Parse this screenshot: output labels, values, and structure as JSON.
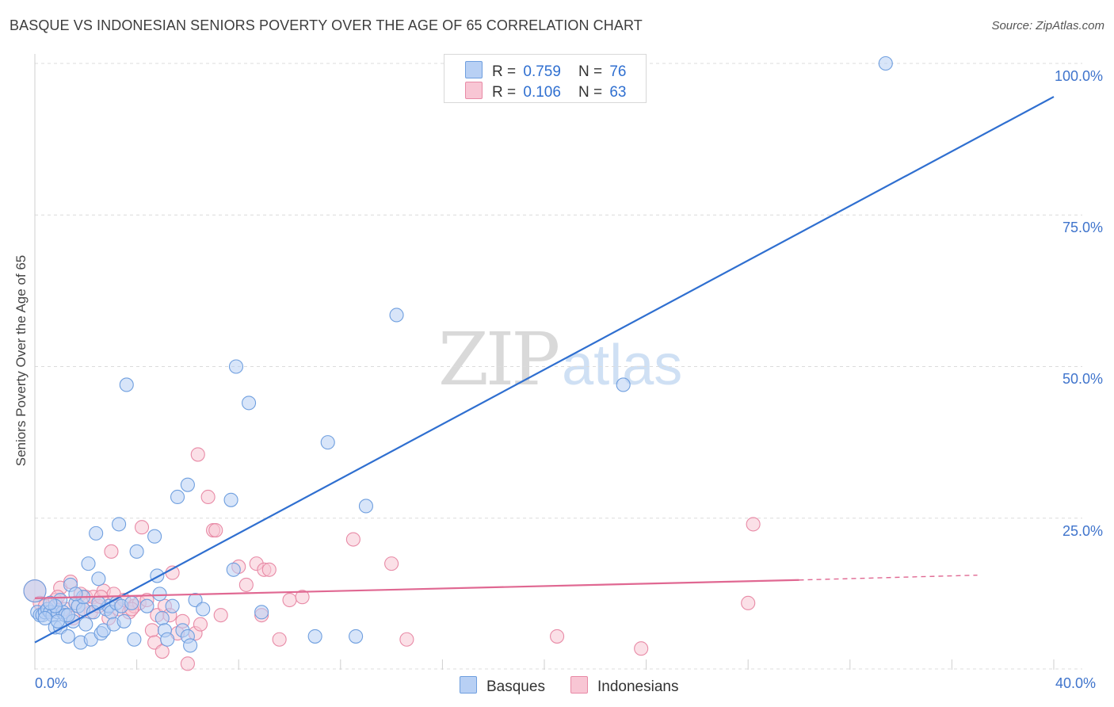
{
  "header": {
    "title": "BASQUE VS INDONESIAN SENIORS POVERTY OVER THE AGE OF 65 CORRELATION CHART",
    "source": "Source: ZipAtlas.com"
  },
  "watermark": {
    "zip": "ZIP",
    "atlas": "atlas"
  },
  "legend": {
    "basques": {
      "r_label": "R =",
      "r_value": "0.759",
      "n_label": "N =",
      "n_value": "76"
    },
    "indonesians": {
      "r_label": "R =",
      "r_value": "0.106",
      "n_label": "N =",
      "n_value": "63"
    }
  },
  "colors": {
    "basques_fill": "#b8d0f4",
    "basques_stroke": "#6f9fdf",
    "basques_line": "#2f6fd0",
    "indonesians_fill": "#f8c6d4",
    "indonesians_stroke": "#e88aa6",
    "indonesians_line": "#e06892"
  },
  "chart_data": {
    "type": "scatter",
    "title": "BASQUE VS INDONESIAN SENIORS POVERTY OVER THE AGE OF 65 CORRELATION CHART",
    "xlabel": "",
    "ylabel": "Seniors Poverty Over the Age of 65",
    "xlim": [
      0,
      40
    ],
    "ylim": [
      0,
      100
    ],
    "x_tick_labels": [
      "0.0%",
      "40.0%"
    ],
    "y_tick_labels": [
      "25.0%",
      "50.0%",
      "75.0%",
      "100.0%"
    ],
    "y_ticks": [
      25,
      50,
      75,
      100
    ],
    "x_gridlines": [
      0,
      4,
      8,
      12,
      16,
      20,
      24,
      28,
      32,
      36,
      40
    ],
    "y_gridlines": [
      25,
      50,
      75,
      100
    ],
    "legend_position": "top-center",
    "series": [
      {
        "name": "Basques",
        "r": 0.759,
        "n": 76,
        "trend": {
          "x": [
            0,
            40
          ],
          "y": [
            4.5,
            94.5
          ],
          "dashed_from": null
        },
        "points": [
          [
            0.0,
            13.0
          ],
          [
            0.1,
            9.5
          ],
          [
            0.2,
            9.0
          ],
          [
            0.3,
            9.0
          ],
          [
            0.4,
            9.5
          ],
          [
            0.5,
            10.0
          ],
          [
            0.6,
            9.5
          ],
          [
            0.7,
            9.0
          ],
          [
            0.8,
            7.0
          ],
          [
            0.9,
            9.5
          ],
          [
            1.0,
            7.0
          ],
          [
            1.1,
            9.5
          ],
          [
            1.2,
            9.0
          ],
          [
            1.3,
            5.5
          ],
          [
            1.4,
            14.0
          ],
          [
            1.5,
            8.0
          ],
          [
            1.6,
            11.0
          ],
          [
            1.7,
            10.5
          ],
          [
            1.8,
            4.5
          ],
          [
            1.9,
            10.0
          ],
          [
            2.1,
            17.5
          ],
          [
            2.2,
            5.0
          ],
          [
            2.3,
            9.5
          ],
          [
            2.4,
            22.5
          ],
          [
            2.5,
            15.0
          ],
          [
            2.6,
            6.0
          ],
          [
            2.7,
            6.5
          ],
          [
            2.8,
            10.0
          ],
          [
            2.9,
            10.5
          ],
          [
            3.0,
            9.5
          ],
          [
            3.1,
            7.5
          ],
          [
            3.2,
            11.0
          ],
          [
            3.3,
            24.0
          ],
          [
            3.4,
            10.5
          ],
          [
            3.6,
            47.0
          ],
          [
            3.9,
            5.0
          ],
          [
            4.0,
            19.5
          ],
          [
            4.7,
            22.0
          ],
          [
            4.8,
            15.5
          ],
          [
            4.9,
            12.5
          ],
          [
            5.0,
            8.5
          ],
          [
            5.1,
            6.5
          ],
          [
            5.2,
            5.0
          ],
          [
            5.4,
            10.5
          ],
          [
            5.6,
            28.5
          ],
          [
            5.8,
            6.5
          ],
          [
            6.0,
            5.5
          ],
          [
            6.1,
            4.0
          ],
          [
            6.0,
            30.5
          ],
          [
            6.3,
            11.5
          ],
          [
            6.6,
            10.0
          ],
          [
            7.7,
            28.0
          ],
          [
            7.8,
            16.5
          ],
          [
            7.9,
            50.0
          ],
          [
            8.4,
            44.0
          ],
          [
            8.9,
            9.5
          ],
          [
            11.0,
            5.5
          ],
          [
            11.5,
            37.5
          ],
          [
            12.6,
            5.5
          ],
          [
            13.0,
            27.0
          ],
          [
            14.2,
            58.5
          ],
          [
            23.1,
            47.0
          ],
          [
            33.4,
            100.0
          ],
          [
            1.0,
            11.5
          ],
          [
            0.8,
            10.5
          ],
          [
            1.9,
            12.0
          ],
          [
            2.5,
            11.0
          ],
          [
            0.4,
            8.5
          ],
          [
            1.3,
            9.0
          ],
          [
            3.8,
            11.0
          ],
          [
            0.6,
            11.0
          ],
          [
            1.6,
            12.5
          ],
          [
            2.0,
            7.5
          ],
          [
            4.4,
            10.5
          ],
          [
            3.5,
            8.0
          ],
          [
            0.9,
            8.0
          ]
        ]
      },
      {
        "name": "Indonesians",
        "r": 0.106,
        "n": 63,
        "trend": {
          "x": [
            0,
            30,
            37
          ],
          "y": [
            11.8,
            14.8,
            15.6
          ],
          "dashed_from": 30
        },
        "points": [
          [
            0.0,
            13.0
          ],
          [
            0.2,
            11.0
          ],
          [
            0.4,
            10.5
          ],
          [
            0.6,
            9.5
          ],
          [
            0.8,
            11.5
          ],
          [
            1.0,
            13.5
          ],
          [
            1.2,
            10.0
          ],
          [
            1.4,
            14.5
          ],
          [
            1.6,
            11.0
          ],
          [
            1.8,
            12.5
          ],
          [
            2.0,
            12.0
          ],
          [
            2.2,
            9.5
          ],
          [
            2.3,
            12.0
          ],
          [
            2.5,
            10.5
          ],
          [
            2.7,
            13.0
          ],
          [
            2.9,
            8.5
          ],
          [
            3.0,
            19.5
          ],
          [
            3.1,
            12.5
          ],
          [
            3.3,
            10.0
          ],
          [
            3.5,
            11.5
          ],
          [
            3.7,
            9.5
          ],
          [
            3.9,
            10.5
          ],
          [
            4.1,
            11.0
          ],
          [
            4.2,
            23.5
          ],
          [
            4.4,
            11.5
          ],
          [
            4.6,
            6.5
          ],
          [
            4.7,
            4.5
          ],
          [
            4.8,
            9.0
          ],
          [
            5.0,
            3.0
          ],
          [
            5.1,
            10.5
          ],
          [
            5.3,
            9.0
          ],
          [
            5.4,
            16.0
          ],
          [
            5.6,
            6.0
          ],
          [
            5.8,
            8.0
          ],
          [
            6.0,
            1.0
          ],
          [
            6.3,
            6.0
          ],
          [
            6.4,
            35.5
          ],
          [
            6.5,
            7.5
          ],
          [
            6.8,
            28.5
          ],
          [
            7.0,
            23.0
          ],
          [
            7.1,
            23.0
          ],
          [
            7.3,
            9.0
          ],
          [
            8.0,
            17.0
          ],
          [
            8.3,
            14.0
          ],
          [
            8.7,
            17.5
          ],
          [
            8.9,
            9.0
          ],
          [
            9.0,
            16.5
          ],
          [
            9.2,
            16.5
          ],
          [
            9.6,
            5.0
          ],
          [
            10.0,
            11.5
          ],
          [
            10.5,
            12.0
          ],
          [
            12.5,
            21.5
          ],
          [
            14.0,
            17.5
          ],
          [
            14.6,
            5.0
          ],
          [
            20.5,
            5.5
          ],
          [
            23.8,
            3.5
          ],
          [
            28.0,
            11.0
          ],
          [
            28.2,
            24.0
          ],
          [
            1.5,
            8.5
          ],
          [
            2.6,
            12.0
          ],
          [
            3.8,
            10.0
          ],
          [
            0.9,
            12.0
          ],
          [
            1.9,
            10.0
          ]
        ]
      }
    ]
  },
  "bottom_legend": {
    "basques_label": "Basques",
    "indonesians_label": "Indonesians"
  }
}
